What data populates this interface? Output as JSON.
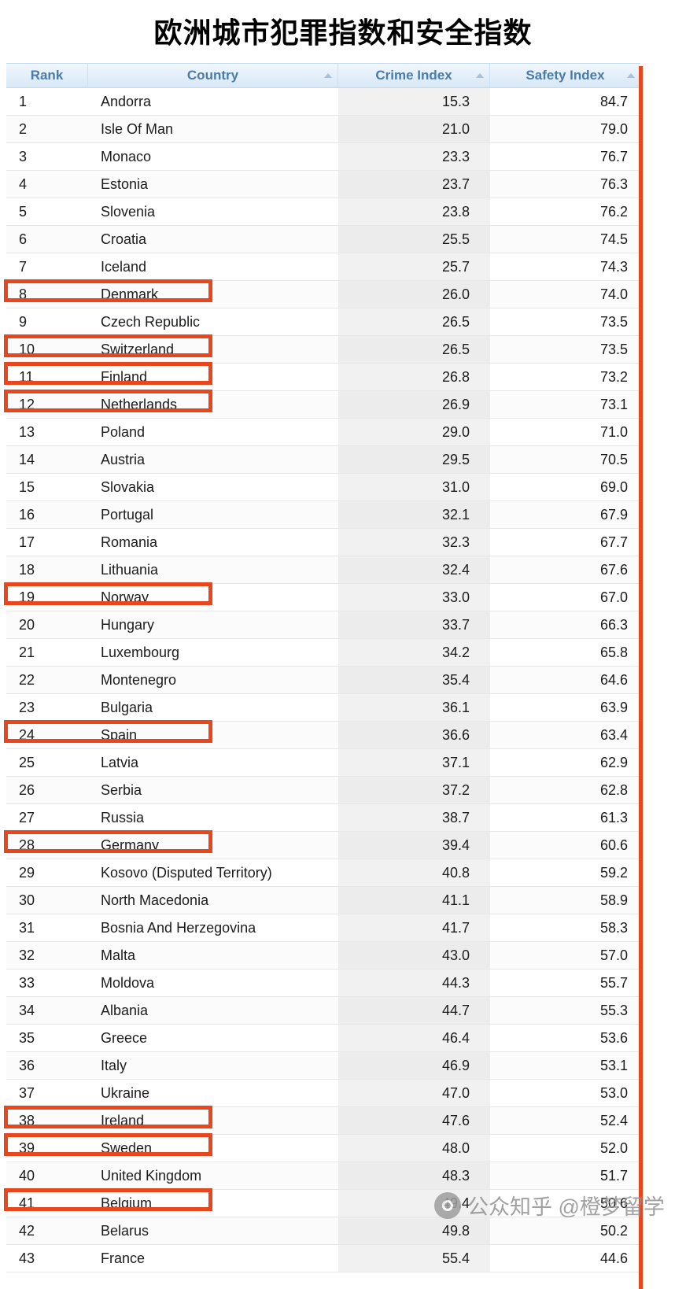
{
  "title": "欧洲城市犯罪指数和安全指数",
  "watermark": {
    "icon": "camera-icon",
    "text": "公众知乎 @橙梦留学"
  },
  "colors": {
    "highlight_border": "#e8471d",
    "right_stripe": "#e8471d",
    "header_text": "#4a7bab",
    "header_bg": "#d8e8f6",
    "crime_column_bg": "#f1f1f1"
  },
  "chart_data": {
    "type": "table",
    "title": "欧洲城市犯罪指数和安全指数",
    "columns": [
      "Rank",
      "Country",
      "Crime Index",
      "Safety Index"
    ],
    "sort_order": "crime index ascending",
    "highlighted_ranks": [
      8,
      10,
      11,
      12,
      19,
      24,
      28,
      38,
      39,
      41
    ],
    "rows": [
      {
        "rank": 1,
        "country": "Andorra",
        "crime": "15.3",
        "safety": "84.7",
        "highlight": false
      },
      {
        "rank": 2,
        "country": "Isle Of Man",
        "crime": "21.0",
        "safety": "79.0",
        "highlight": false
      },
      {
        "rank": 3,
        "country": "Monaco",
        "crime": "23.3",
        "safety": "76.7",
        "highlight": false
      },
      {
        "rank": 4,
        "country": "Estonia",
        "crime": "23.7",
        "safety": "76.3",
        "highlight": false
      },
      {
        "rank": 5,
        "country": "Slovenia",
        "crime": "23.8",
        "safety": "76.2",
        "highlight": false
      },
      {
        "rank": 6,
        "country": "Croatia",
        "crime": "25.5",
        "safety": "74.5",
        "highlight": false
      },
      {
        "rank": 7,
        "country": "Iceland",
        "crime": "25.7",
        "safety": "74.3",
        "highlight": false
      },
      {
        "rank": 8,
        "country": "Denmark",
        "crime": "26.0",
        "safety": "74.0",
        "highlight": true
      },
      {
        "rank": 9,
        "country": "Czech Republic",
        "crime": "26.5",
        "safety": "73.5",
        "highlight": false
      },
      {
        "rank": 10,
        "country": "Switzerland",
        "crime": "26.5",
        "safety": "73.5",
        "highlight": true
      },
      {
        "rank": 11,
        "country": "Finland",
        "crime": "26.8",
        "safety": "73.2",
        "highlight": true
      },
      {
        "rank": 12,
        "country": "Netherlands",
        "crime": "26.9",
        "safety": "73.1",
        "highlight": true
      },
      {
        "rank": 13,
        "country": "Poland",
        "crime": "29.0",
        "safety": "71.0",
        "highlight": false
      },
      {
        "rank": 14,
        "country": "Austria",
        "crime": "29.5",
        "safety": "70.5",
        "highlight": false
      },
      {
        "rank": 15,
        "country": "Slovakia",
        "crime": "31.0",
        "safety": "69.0",
        "highlight": false
      },
      {
        "rank": 16,
        "country": "Portugal",
        "crime": "32.1",
        "safety": "67.9",
        "highlight": false
      },
      {
        "rank": 17,
        "country": "Romania",
        "crime": "32.3",
        "safety": "67.7",
        "highlight": false
      },
      {
        "rank": 18,
        "country": "Lithuania",
        "crime": "32.4",
        "safety": "67.6",
        "highlight": false
      },
      {
        "rank": 19,
        "country": "Norway",
        "crime": "33.0",
        "safety": "67.0",
        "highlight": true
      },
      {
        "rank": 20,
        "country": "Hungary",
        "crime": "33.7",
        "safety": "66.3",
        "highlight": false
      },
      {
        "rank": 21,
        "country": "Luxembourg",
        "crime": "34.2",
        "safety": "65.8",
        "highlight": false
      },
      {
        "rank": 22,
        "country": "Montenegro",
        "crime": "35.4",
        "safety": "64.6",
        "highlight": false
      },
      {
        "rank": 23,
        "country": "Bulgaria",
        "crime": "36.1",
        "safety": "63.9",
        "highlight": false
      },
      {
        "rank": 24,
        "country": "Spain",
        "crime": "36.6",
        "safety": "63.4",
        "highlight": true
      },
      {
        "rank": 25,
        "country": "Latvia",
        "crime": "37.1",
        "safety": "62.9",
        "highlight": false
      },
      {
        "rank": 26,
        "country": "Serbia",
        "crime": "37.2",
        "safety": "62.8",
        "highlight": false
      },
      {
        "rank": 27,
        "country": "Russia",
        "crime": "38.7",
        "safety": "61.3",
        "highlight": false
      },
      {
        "rank": 28,
        "country": "Germany",
        "crime": "39.4",
        "safety": "60.6",
        "highlight": true
      },
      {
        "rank": 29,
        "country": "Kosovo (Disputed Territory)",
        "crime": "40.8",
        "safety": "59.2",
        "highlight": false
      },
      {
        "rank": 30,
        "country": "North Macedonia",
        "crime": "41.1",
        "safety": "58.9",
        "highlight": false
      },
      {
        "rank": 31,
        "country": "Bosnia And Herzegovina",
        "crime": "41.7",
        "safety": "58.3",
        "highlight": false
      },
      {
        "rank": 32,
        "country": "Malta",
        "crime": "43.0",
        "safety": "57.0",
        "highlight": false
      },
      {
        "rank": 33,
        "country": "Moldova",
        "crime": "44.3",
        "safety": "55.7",
        "highlight": false
      },
      {
        "rank": 34,
        "country": "Albania",
        "crime": "44.7",
        "safety": "55.3",
        "highlight": false
      },
      {
        "rank": 35,
        "country": "Greece",
        "crime": "46.4",
        "safety": "53.6",
        "highlight": false
      },
      {
        "rank": 36,
        "country": "Italy",
        "crime": "46.9",
        "safety": "53.1",
        "highlight": false
      },
      {
        "rank": 37,
        "country": "Ukraine",
        "crime": "47.0",
        "safety": "53.0",
        "highlight": false
      },
      {
        "rank": 38,
        "country": "Ireland",
        "crime": "47.6",
        "safety": "52.4",
        "highlight": true
      },
      {
        "rank": 39,
        "country": "Sweden",
        "crime": "48.0",
        "safety": "52.0",
        "highlight": true
      },
      {
        "rank": 40,
        "country": "United Kingdom",
        "crime": "48.3",
        "safety": "51.7",
        "highlight": false
      },
      {
        "rank": 41,
        "country": "Belgium",
        "crime": "49.4",
        "safety": "50.6",
        "highlight": true
      },
      {
        "rank": 42,
        "country": "Belarus",
        "crime": "49.8",
        "safety": "50.2",
        "highlight": false
      },
      {
        "rank": 43,
        "country": "France",
        "crime": "55.4",
        "safety": "44.6",
        "highlight": false
      }
    ]
  }
}
